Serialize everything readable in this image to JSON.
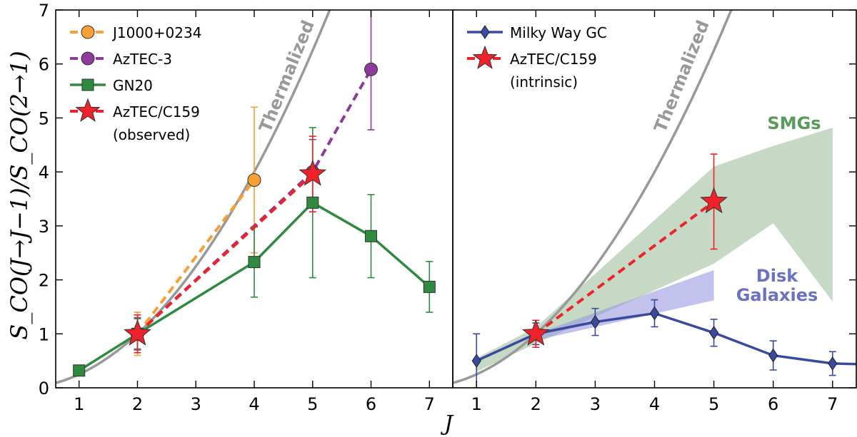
{
  "chart_data": [
    {
      "type": "line",
      "panel": "left",
      "xlabel": "J",
      "ylabel": "S_CO(J→J−1)/S_CO(2→1)",
      "xlim": [
        0.6,
        7.4
      ],
      "ylim": [
        0,
        7
      ],
      "xticks": [
        1,
        2,
        3,
        4,
        5,
        6,
        7
      ],
      "yticks": [
        0,
        1,
        2,
        3,
        4,
        5,
        6,
        7
      ],
      "curve": {
        "label": "Thermalized",
        "color": "#999999",
        "formula": "(J/2)^2"
      },
      "series": [
        {
          "name": "J1000+0234",
          "color": "#f7a035",
          "marker": "circle",
          "linestyle": "dashed",
          "points": [
            {
              "x": 2,
              "y": 1.0,
              "err": 0.4
            },
            {
              "x": 4,
              "y": 3.85,
              "err": 1.35
            }
          ]
        },
        {
          "name": "AzTEC-3",
          "color": "#8e3a9a",
          "marker": "circle",
          "linestyle": "dashed",
          "points": [
            {
              "x": 2,
              "y": 1.0,
              "err": 0.3
            },
            {
              "x": 5,
              "y": 4.0,
              "err": 0.6
            },
            {
              "x": 6,
              "y": 5.9,
              "err": 1.12
            }
          ]
        },
        {
          "name": "GN20",
          "color": "#2e8a3e",
          "marker": "square",
          "linestyle": "solid",
          "points": [
            {
              "x": 1,
              "y": 0.32,
              "err": 0.05
            },
            {
              "x": 2,
              "y": 1.0,
              "err": 0.28
            },
            {
              "x": 4,
              "y": 2.33,
              "err": 0.65
            },
            {
              "x": 5,
              "y": 3.43,
              "err": 1.39
            },
            {
              "x": 6,
              "y": 2.81,
              "err": 0.77
            },
            {
              "x": 7,
              "y": 1.87,
              "err": 0.47
            }
          ]
        },
        {
          "name": "AzTEC/C159\n(observed)",
          "legend_lines": [
            "AzTEC/C159",
            "(observed)"
          ],
          "color": "#ee2228",
          "marker": "star",
          "linestyle": "dashed",
          "points": [
            {
              "x": 2,
              "y": 1.0,
              "err": 0.35
            },
            {
              "x": 5,
              "y": 3.96,
              "err": 0.7
            }
          ]
        }
      ]
    },
    {
      "type": "line",
      "panel": "right",
      "xlabel": "J",
      "ylabel": "",
      "xlim": [
        0.6,
        7.4
      ],
      "ylim": [
        0,
        7
      ],
      "xticks": [
        1,
        2,
        3,
        4,
        5,
        6,
        7
      ],
      "curve": {
        "label": "Thermalized",
        "color": "#999999",
        "formula": "(J/2)^2"
      },
      "bands": [
        {
          "name": "SMGs",
          "color": "#8cb38c",
          "alpha": 0.5,
          "label_color": "#5a9a5a",
          "x": [
            1,
            2,
            5,
            6,
            7
          ],
          "lower": [
            0.3,
            0.82,
            2.3,
            3.05,
            1.6
          ],
          "upper": [
            0.55,
            1.12,
            4.1,
            4.48,
            4.82
          ]
        },
        {
          "name": "Disk\nGalaxies",
          "legend_lines": [
            "Disk",
            "Galaxies"
          ],
          "color": "#9a9ae0",
          "alpha": 0.6,
          "label_color": "#6b72c2",
          "x": [
            2,
            5
          ],
          "lower": [
            0.88,
            1.62
          ],
          "upper": [
            1.0,
            2.18
          ]
        }
      ],
      "series": [
        {
          "name": "Milky Way GC",
          "color": "#3a4a9e",
          "marker": "diamond",
          "linestyle": "solid",
          "points": [
            {
              "x": 1,
              "y": 0.5,
              "err": 0.5
            },
            {
              "x": 2,
              "y": 1.0,
              "err": 0.2
            },
            {
              "x": 3,
              "y": 1.22,
              "err": 0.25
            },
            {
              "x": 4,
              "y": 1.38,
              "err": 0.25
            },
            {
              "x": 5,
              "y": 1.02,
              "err": 0.25
            },
            {
              "x": 6,
              "y": 0.6,
              "err": 0.27
            },
            {
              "x": 7,
              "y": 0.45,
              "err": 0.22
            },
            {
              "x": 7.4,
              "y": 0.44,
              "err": 0
            }
          ]
        },
        {
          "name": "AzTEC/C159\n(intrinsic)",
          "legend_lines": [
            "AzTEC/C159",
            "(intrinsic)"
          ],
          "color": "#ee2228",
          "marker": "star",
          "linestyle": "dashed",
          "points": [
            {
              "x": 2,
              "y": 1.0,
              "err": 0.25
            },
            {
              "x": 5,
              "y": 3.45,
              "err": 0.88
            }
          ]
        }
      ]
    }
  ]
}
